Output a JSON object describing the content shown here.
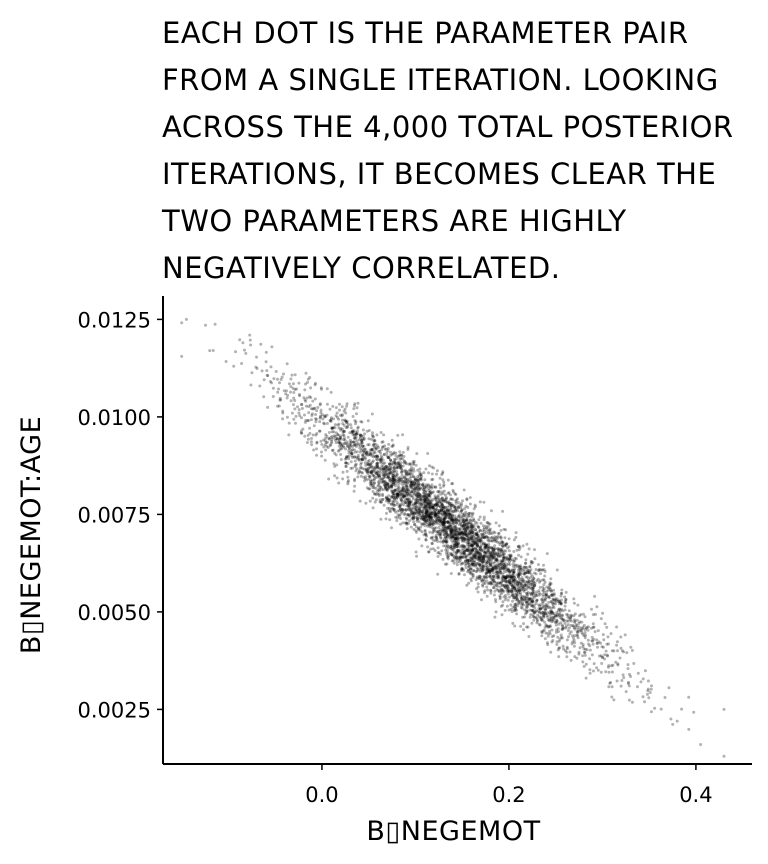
{
  "title": "EACH DOT IS THE PARAMETER PAIR\nFROM A SINGLE ITERATION. LOOKING\nACROSS THE 4,000 TOTAL POSTERIOR\nITERATIONS, IT BECOMES CLEAR THE\nTWO PARAMETERS ARE HIGHLY\nNEGATIVELY CORRELATED.",
  "chart_data": {
    "type": "scatter",
    "n_points": 4000,
    "xlabel": "B▯NEGEMOT",
    "ylabel": "B▯NEGEMOT:AGE",
    "xlim": [
      -0.17,
      0.46
    ],
    "ylim": [
      0.0011,
      0.0131
    ],
    "xticks": [
      0.0,
      0.2,
      0.4
    ],
    "xtick_labels": [
      "0.0",
      "0.2",
      "0.4"
    ],
    "yticks": [
      0.0025,
      0.005,
      0.0075,
      0.01,
      0.0125
    ],
    "ytick_labels": [
      "0.0025",
      "0.0050",
      "0.0075",
      "0.0100",
      "0.0125"
    ],
    "relationship": {
      "slope": -0.0196,
      "intercept": 0.00987,
      "x_mean": 0.14,
      "x_sd": 0.08,
      "y_residual_sd": 0.00045
    },
    "extreme_points": [
      {
        "x": -0.145,
        "y": 0.0125
      },
      {
        "x": -0.12,
        "y": 0.0117
      },
      {
        "x": 0.43,
        "y": 0.0025
      },
      {
        "x": 0.405,
        "y": 0.0016
      },
      {
        "x": 0.38,
        "y": 0.0022
      }
    ],
    "point_color": "#000000",
    "point_opacity": 0.3,
    "grid": false
  }
}
